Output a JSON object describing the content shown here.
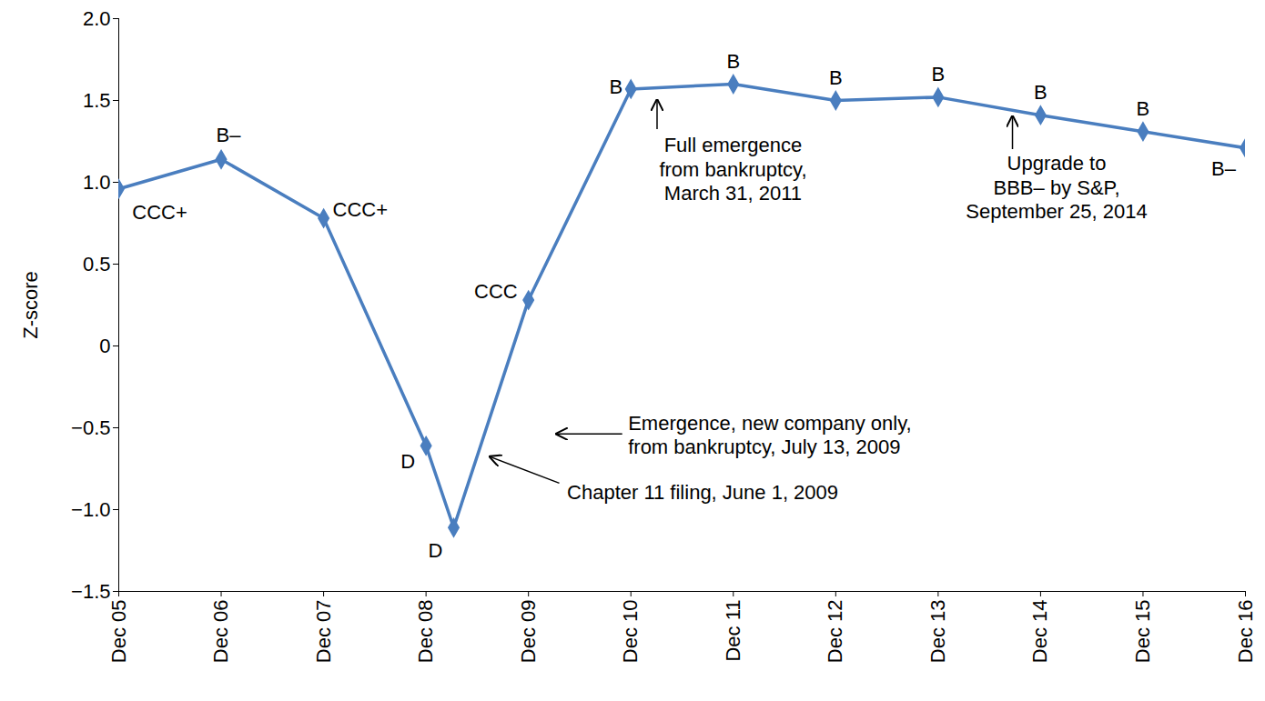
{
  "chart_data": {
    "type": "line",
    "y_label": "Z-score",
    "x": [
      2005,
      2006,
      2007,
      2008,
      2008.27,
      2009,
      2010,
      2011,
      2012,
      2013,
      2014,
      2015,
      2016
    ],
    "values": [
      0.96,
      1.14,
      0.78,
      -0.61,
      -1.11,
      0.28,
      1.57,
      1.6,
      1.5,
      1.52,
      1.41,
      1.31,
      1.21
    ],
    "ratings": [
      "CCC+",
      "B–",
      "CCC+",
      "D",
      "D",
      "CCC",
      "B",
      "B",
      "B",
      "B",
      "B",
      "B",
      "B–"
    ],
    "color": "#4a7ebf",
    "marker": "diamond",
    "xlim": [
      2005,
      2016
    ],
    "xticks": [
      {
        "value": 2005,
        "label": "Dec 05"
      },
      {
        "value": 2006,
        "label": "Dec 06"
      },
      {
        "value": 2007,
        "label": "Dec 07"
      },
      {
        "value": 2008,
        "label": "Dec 08"
      },
      {
        "value": 2009,
        "label": "Dec 09"
      },
      {
        "value": 2010,
        "label": "Dec 10"
      },
      {
        "value": 2011,
        "label": "Dec 11"
      },
      {
        "value": 2012,
        "label": "Dec 12"
      },
      {
        "value": 2013,
        "label": "Dec 13"
      },
      {
        "value": 2014,
        "label": "Dec 14"
      },
      {
        "value": 2015,
        "label": "Dec 15"
      },
      {
        "value": 2016,
        "label": "Dec 16"
      }
    ],
    "ylim": [
      -1.5,
      2
    ],
    "yticks": [
      {
        "value": 2,
        "label": "2.0"
      },
      1.5,
      {
        "value": 1,
        "label": "1.0"
      },
      0.5,
      0,
      {
        "value": -0.5,
        "label": "−0.5"
      },
      {
        "value": -1,
        "label": "−1.0"
      },
      {
        "value": -1.5,
        "label": "−1.5"
      }
    ],
    "grid": false,
    "annotations": [
      {
        "text": "Full emergence\nfrom bankruptcy,\nMarch 31, 2011",
        "x": 2010.26,
        "y": 1.5
      },
      {
        "text": "Upgrade to\nBBB– by S&P,\nSeptember 25, 2014",
        "x": 2013.73,
        "y": 1.4
      },
      {
        "text": "Emergence, new company only,\nfrom bankruptcy, July 13, 2009",
        "x": 2009.28,
        "y": -0.54
      },
      {
        "text": "Chapter 11 filing, June 1, 2009",
        "x": 2008.63,
        "y": -0.68
      }
    ]
  }
}
